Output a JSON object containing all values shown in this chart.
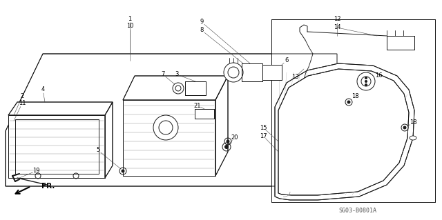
{
  "bg_color": "#ffffff",
  "line_color": "#1a1a1a",
  "part_number_ref": "SG03-B0801A",
  "fr_label": "FR."
}
